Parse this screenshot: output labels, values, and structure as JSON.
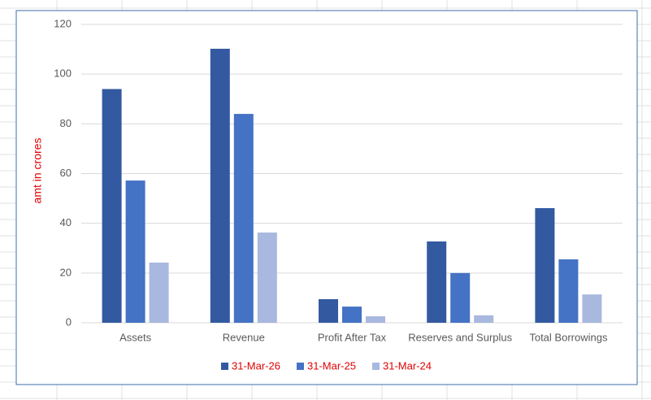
{
  "chart_data": {
    "type": "bar",
    "y_label": "amt in crores",
    "categories": [
      "Assets",
      "Revenue",
      "Profit After Tax",
      "Reserves and Surplus",
      "Total Borrowings"
    ],
    "series": [
      {
        "name": "31-Mar-26",
        "color": "#335aa1",
        "values": [
          94,
          110.2,
          9.5,
          32.7,
          46.1
        ]
      },
      {
        "name": "31-Mar-25",
        "color": "#4472c4",
        "values": [
          57.2,
          84,
          6.5,
          20,
          25.5
        ]
      },
      {
        "name": "31-Mar-24",
        "color": "#a9b8de",
        "values": [
          24.2,
          36.3,
          2.6,
          3,
          11.4
        ]
      }
    ],
    "ylim": [
      0,
      120
    ],
    "yticks": [
      0,
      20,
      40,
      60,
      80,
      100,
      120
    ],
    "grid": true,
    "legend": "bottom"
  }
}
